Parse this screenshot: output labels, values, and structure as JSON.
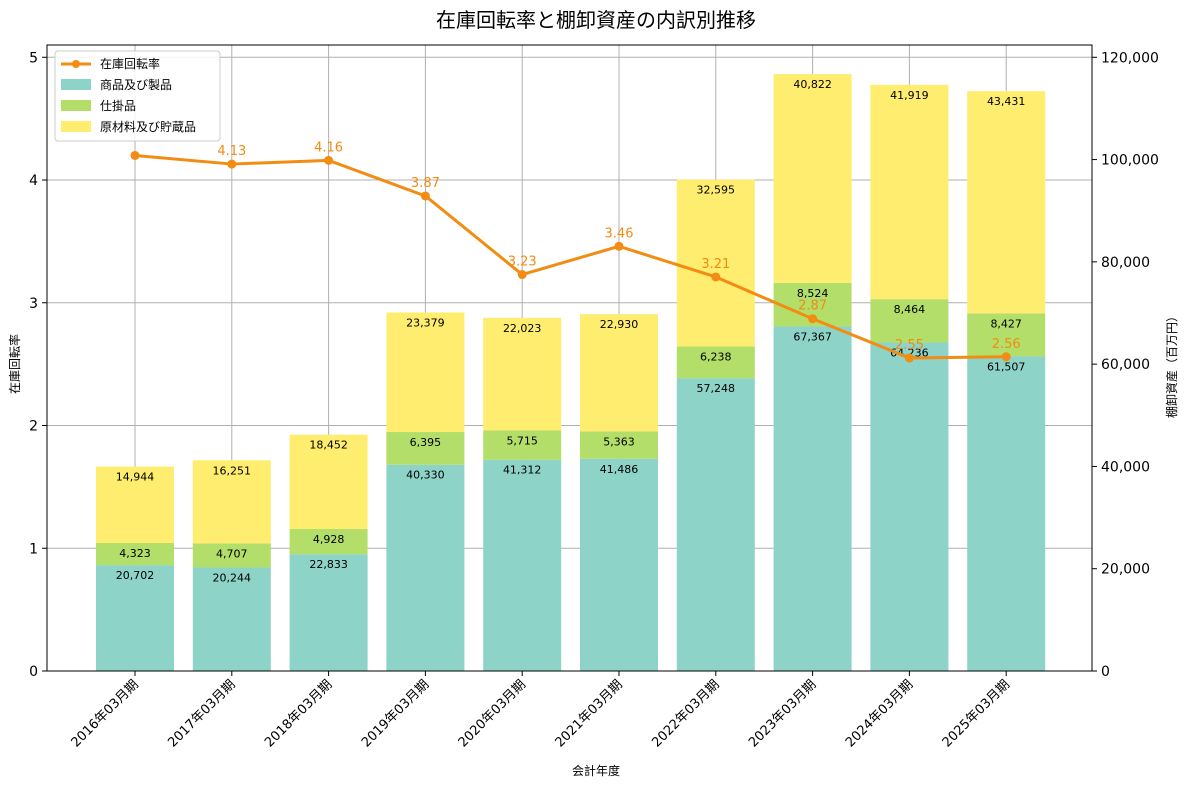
{
  "chart_data": {
    "type": "bar",
    "title": "在庫回転率と棚卸資産の内訳別推移",
    "xlabel": "会計年度",
    "ylabel_left": "在庫回転率",
    "ylabel_right": "棚卸資産（百万円）",
    "categories": [
      "2016年03月期",
      "2017年03月期",
      "2018年03月期",
      "2019年03月期",
      "2020年03月期",
      "2021年03月期",
      "2022年03月期",
      "2023年03月期",
      "2024年03月期",
      "2025年03月期"
    ],
    "series": [
      {
        "name": "商品及び製品",
        "color": "#8dd3c7",
        "values": [
          20702,
          20244,
          22833,
          40330,
          41312,
          41486,
          57248,
          67367,
          64236,
          61507
        ],
        "labels": [
          "20,702",
          "20,244",
          "22,833",
          "40,330",
          "41,312",
          "41,486",
          "57,248",
          "67,367",
          "64,236",
          "61,507"
        ]
      },
      {
        "name": "仕掛品",
        "color": "#b3de69",
        "values": [
          4323,
          4707,
          4928,
          6395,
          5715,
          5363,
          6238,
          8524,
          8464,
          8427
        ],
        "labels": [
          "4,323",
          "4,707",
          "4,928",
          "6,395",
          "5,715",
          "5,363",
          "6,238",
          "8,524",
          "8,464",
          "8,427"
        ]
      },
      {
        "name": "原材料及び貯蔵品",
        "color": "#ffed6f",
        "values": [
          14944,
          16251,
          18452,
          23379,
          22023,
          22930,
          32595,
          40822,
          41919,
          43431
        ],
        "labels": [
          "14,944",
          "16,251",
          "18,452",
          "23,379",
          "22,023",
          "22,930",
          "32,595",
          "40,822",
          "41,919",
          "43,431"
        ]
      }
    ],
    "line": {
      "name": "在庫回転率",
      "color": "#f28c12",
      "values": [
        4.2,
        4.13,
        4.16,
        3.87,
        3.23,
        3.46,
        3.21,
        2.87,
        2.55,
        2.56
      ],
      "labels": [
        "",
        "4.13",
        "4.16",
        "3.87",
        "3.23",
        "3.46",
        "3.21",
        "2.87",
        "2.55",
        "2.56"
      ]
    },
    "ylim_left": [
      0,
      5.1
    ],
    "ylim_right": [
      0,
      122400
    ],
    "yticks_left": [
      0,
      1,
      2,
      3,
      4,
      5
    ],
    "yticks_left_labels": [
      "0",
      "1",
      "2",
      "3",
      "4",
      "5"
    ],
    "yticks_right": [
      0,
      20000,
      40000,
      60000,
      80000,
      100000,
      120000
    ],
    "yticks_right_labels": [
      "0",
      "20,000",
      "40,000",
      "60,000",
      "80,000",
      "100,000",
      "120,000"
    ],
    "grid": true,
    "legend_position": "top-left"
  }
}
